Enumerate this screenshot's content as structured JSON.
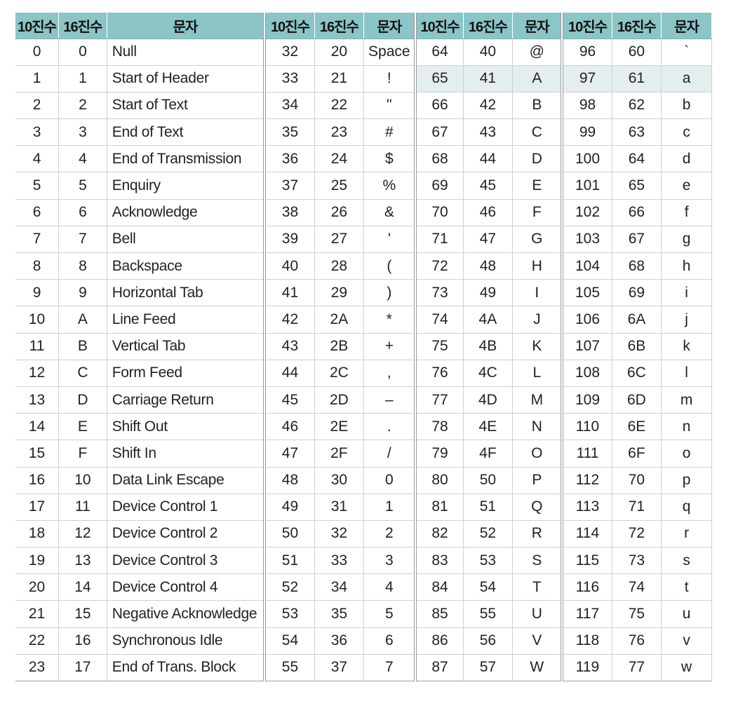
{
  "header": {
    "dec": "10진수",
    "hex": "16진수",
    "char": "문자"
  },
  "highlight_row": 1,
  "highlight_color": "#e5eeee",
  "header_color": "#8cc5c6",
  "rows": [
    [
      [
        "0",
        "0",
        "Null"
      ],
      [
        "32",
        "20",
        "Space"
      ],
      [
        "64",
        "40",
        "@"
      ],
      [
        "96",
        "60",
        "`"
      ]
    ],
    [
      [
        "1",
        "1",
        "Start of Header"
      ],
      [
        "33",
        "21",
        "!"
      ],
      [
        "65",
        "41",
        "A"
      ],
      [
        "97",
        "61",
        "a"
      ]
    ],
    [
      [
        "2",
        "2",
        "Start of Text"
      ],
      [
        "34",
        "22",
        "\""
      ],
      [
        "66",
        "42",
        "B"
      ],
      [
        "98",
        "62",
        "b"
      ]
    ],
    [
      [
        "3",
        "3",
        "End of Text"
      ],
      [
        "35",
        "23",
        "#"
      ],
      [
        "67",
        "43",
        "C"
      ],
      [
        "99",
        "63",
        "c"
      ]
    ],
    [
      [
        "4",
        "4",
        "End of Transmission"
      ],
      [
        "36",
        "24",
        "$"
      ],
      [
        "68",
        "44",
        "D"
      ],
      [
        "100",
        "64",
        "d"
      ]
    ],
    [
      [
        "5",
        "5",
        "Enquiry"
      ],
      [
        "37",
        "25",
        "%"
      ],
      [
        "69",
        "45",
        "E"
      ],
      [
        "101",
        "65",
        "e"
      ]
    ],
    [
      [
        "6",
        "6",
        "Acknowledge"
      ],
      [
        "38",
        "26",
        "&"
      ],
      [
        "70",
        "46",
        "F"
      ],
      [
        "102",
        "66",
        "f"
      ]
    ],
    [
      [
        "7",
        "7",
        "Bell"
      ],
      [
        "39",
        "27",
        "'"
      ],
      [
        "71",
        "47",
        "G"
      ],
      [
        "103",
        "67",
        "g"
      ]
    ],
    [
      [
        "8",
        "8",
        "Backspace"
      ],
      [
        "40",
        "28",
        "("
      ],
      [
        "72",
        "48",
        "H"
      ],
      [
        "104",
        "68",
        "h"
      ]
    ],
    [
      [
        "9",
        "9",
        "Horizontal Tab"
      ],
      [
        "41",
        "29",
        ")"
      ],
      [
        "73",
        "49",
        "I"
      ],
      [
        "105",
        "69",
        "i"
      ]
    ],
    [
      [
        "10",
        "A",
        "Line Feed"
      ],
      [
        "42",
        "2A",
        "*"
      ],
      [
        "74",
        "4A",
        "J"
      ],
      [
        "106",
        "6A",
        "j"
      ]
    ],
    [
      [
        "11",
        "B",
        "Vertical Tab"
      ],
      [
        "43",
        "2B",
        "+"
      ],
      [
        "75",
        "4B",
        "K"
      ],
      [
        "107",
        "6B",
        "k"
      ]
    ],
    [
      [
        "12",
        "C",
        "Form Feed"
      ],
      [
        "44",
        "2C",
        ","
      ],
      [
        "76",
        "4C",
        "L"
      ],
      [
        "108",
        "6C",
        "l"
      ]
    ],
    [
      [
        "13",
        "D",
        "Carriage Return"
      ],
      [
        "45",
        "2D",
        "–"
      ],
      [
        "77",
        "4D",
        "M"
      ],
      [
        "109",
        "6D",
        "m"
      ]
    ],
    [
      [
        "14",
        "E",
        "Shift Out"
      ],
      [
        "46",
        "2E",
        "."
      ],
      [
        "78",
        "4E",
        "N"
      ],
      [
        "110",
        "6E",
        "n"
      ]
    ],
    [
      [
        "15",
        "F",
        "Shift In"
      ],
      [
        "47",
        "2F",
        "/"
      ],
      [
        "79",
        "4F",
        "O"
      ],
      [
        "111",
        "6F",
        "o"
      ]
    ],
    [
      [
        "16",
        "10",
        "Data Link Escape"
      ],
      [
        "48",
        "30",
        "0"
      ],
      [
        "80",
        "50",
        "P"
      ],
      [
        "112",
        "70",
        "p"
      ]
    ],
    [
      [
        "17",
        "11",
        "Device Control 1"
      ],
      [
        "49",
        "31",
        "1"
      ],
      [
        "81",
        "51",
        "Q"
      ],
      [
        "113",
        "71",
        "q"
      ]
    ],
    [
      [
        "18",
        "12",
        "Device Control 2"
      ],
      [
        "50",
        "32",
        "2"
      ],
      [
        "82",
        "52",
        "R"
      ],
      [
        "114",
        "72",
        "r"
      ]
    ],
    [
      [
        "19",
        "13",
        "Device Control 3"
      ],
      [
        "51",
        "33",
        "3"
      ],
      [
        "83",
        "53",
        "S"
      ],
      [
        "115",
        "73",
        "s"
      ]
    ],
    [
      [
        "20",
        "14",
        "Device Control 4"
      ],
      [
        "52",
        "34",
        "4"
      ],
      [
        "84",
        "54",
        "T"
      ],
      [
        "116",
        "74",
        "t"
      ]
    ],
    [
      [
        "21",
        "15",
        "Negative Acknowledge"
      ],
      [
        "53",
        "35",
        "5"
      ],
      [
        "85",
        "55",
        "U"
      ],
      [
        "117",
        "75",
        "u"
      ]
    ],
    [
      [
        "22",
        "16",
        "Synchronous Idle"
      ],
      [
        "54",
        "36",
        "6"
      ],
      [
        "86",
        "56",
        "V"
      ],
      [
        "118",
        "76",
        "v"
      ]
    ],
    [
      [
        "23",
        "17",
        "End of Trans. Block"
      ],
      [
        "55",
        "37",
        "7"
      ],
      [
        "87",
        "57",
        "W"
      ],
      [
        "119",
        "77",
        "w"
      ]
    ]
  ]
}
